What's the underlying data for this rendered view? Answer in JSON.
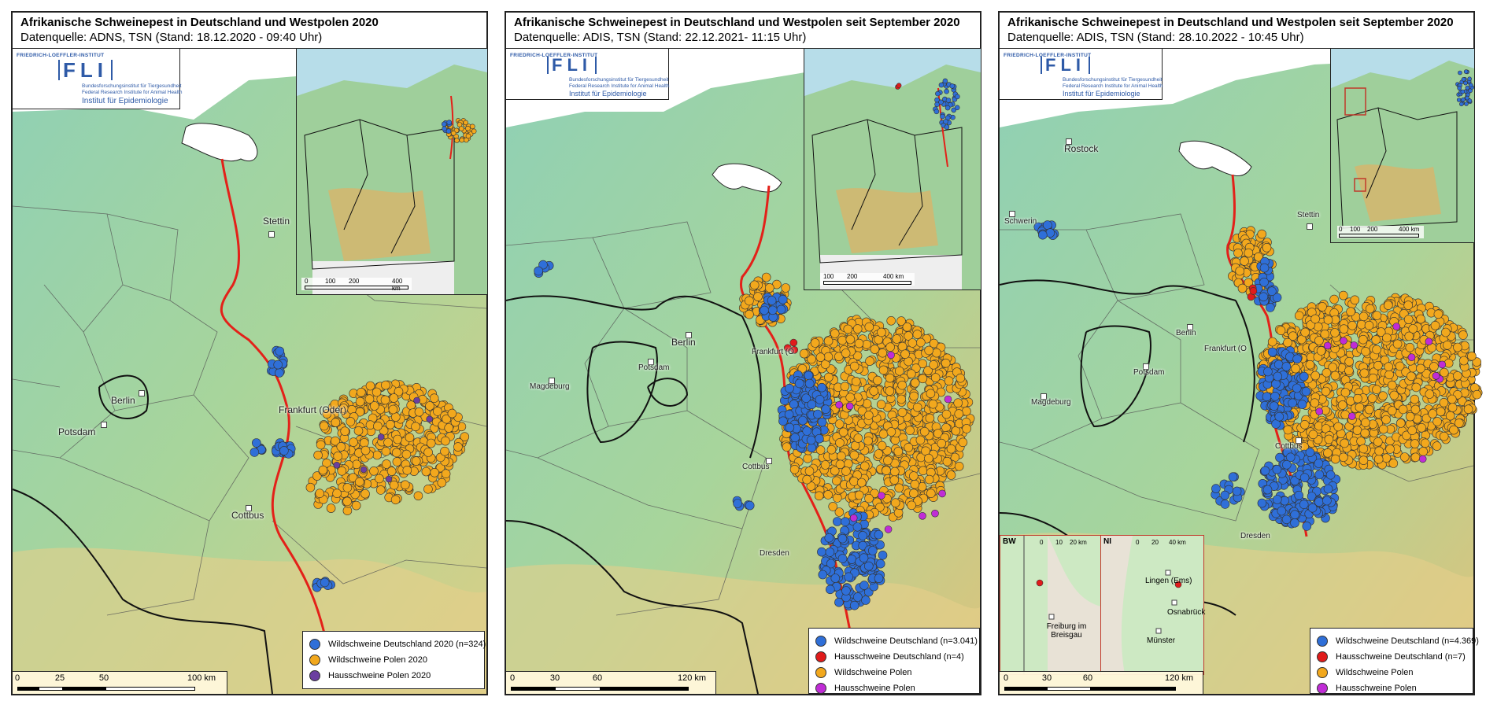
{
  "colors": {
    "wild_de": "#2f6fd8",
    "domestic_de": "#e01b1b",
    "wild_pl": "#f2a81d",
    "domestic_pl_2020": "#6b3fa0",
    "domestic_pl": "#c02cd6",
    "border_line": "#e32119"
  },
  "logo": {
    "institute": "FRIEDRICH-LOEFFLER-INSTITUT",
    "abbr": "FLI",
    "sub_de": "Bundesforschungsinstitut für Tiergesundheit",
    "sub_en": "Federal Research Institute for Animal Health",
    "dept": "Institut für Epidemiologie"
  },
  "maps": [
    {
      "title": "Afrikanische Schweinepest in Deutschland und Westpolen 2020",
      "subtitle": "Datenquelle: ADNS, TSN (Stand: 18.12.2020 - 09:40 Uhr)",
      "cities": [
        "Stettin",
        "Berlin",
        "Potsdam",
        "Frankfurt (Oder)",
        "Cottbus"
      ],
      "legend": [
        "Wildschweine Deutschland 2020 (n=324)",
        "Wildschweine Polen 2020",
        "Hausschweine Polen 2020"
      ],
      "scale_labels": [
        "0",
        "25",
        "50",
        "100 km"
      ],
      "inset_scale": [
        "0",
        "100",
        "200",
        "400 km"
      ]
    },
    {
      "title": "Afrikanische Schweinepest in Deutschland und Westpolen seit September 2020",
      "subtitle": "Datenquelle: ADIS, TSN (Stand: 22.12.2021- 11:15 Uhr)",
      "cities": [
        "Berlin",
        "Potsdam",
        "Frankfurt (O",
        "Magdeburg",
        "Cottbus",
        "Dresden"
      ],
      "legend": [
        "Wildschweine Deutschland (n=3.041)",
        "Hausschweine Deutschland (n=4)",
        "Wildschweine Polen",
        "Hausschweine Polen"
      ],
      "scale_labels": [
        "0",
        "30",
        "60",
        "120 km"
      ],
      "inset_scale": [
        "100",
        "200",
        "400 km"
      ]
    },
    {
      "title": "Afrikanische Schweinepest in Deutschland und Westpolen seit September 2020",
      "subtitle": "Datenquelle: ADIS, TSN (Stand: 28.10.2022 - 10:45 Uhr)",
      "cities": [
        "Rostock",
        "Schwerin",
        "Stettin",
        "Berlin",
        "Potsdam",
        "Frankfurt (O",
        "Magdeburg",
        "Cottbus",
        "Dresden"
      ],
      "legend": [
        "Wildschweine Deutschland (n=4.369)",
        "Hausschweine Deutschland (n=7)",
        "Wildschweine Polen",
        "Hausschweine Polen"
      ],
      "scale_labels": [
        "0",
        "30",
        "60",
        "120 km"
      ],
      "inset_scale": [
        "0",
        "100",
        "200",
        "400 km"
      ],
      "bw_inset": {
        "code": "BW",
        "scale": [
          "0",
          "10",
          "20 km"
        ],
        "city": "Freiburg im Breisgau"
      },
      "ni_inset": {
        "code": "NI",
        "scale": [
          "0",
          "20",
          "40 km"
        ],
        "cities": [
          "Lingen (Ems)",
          "Osnabrück",
          "Münster"
        ]
      }
    }
  ]
}
